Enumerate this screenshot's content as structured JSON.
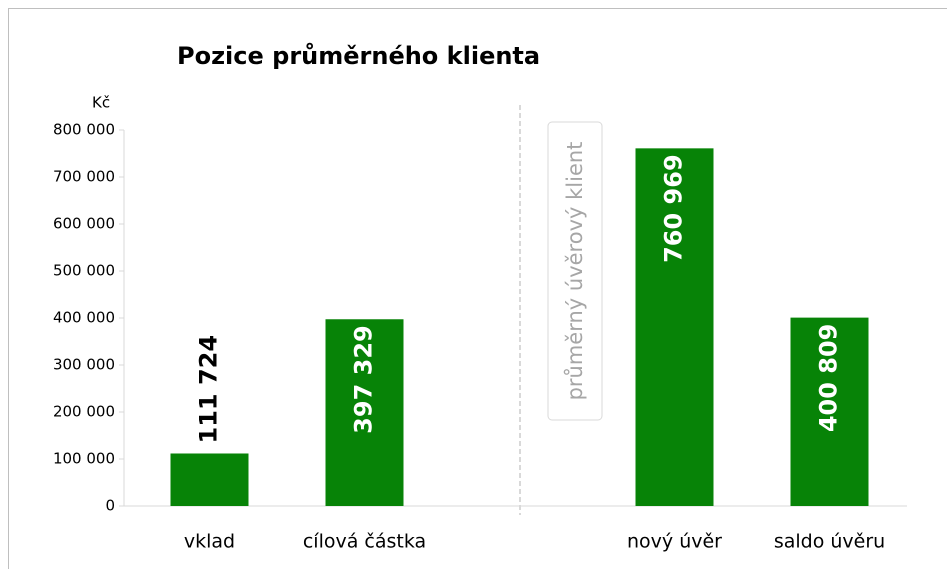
{
  "chart_data": {
    "type": "bar",
    "title": "Pozice průměrného klienta",
    "y_unit": "Kč",
    "categories": [
      "vklad",
      "cílová částka",
      null,
      "nový úvěr",
      "saldo úvěru"
    ],
    "values": [
      111724,
      397329,
      null,
      760969,
      400809
    ],
    "value_labels": [
      "111 724",
      "397 329",
      null,
      "760 969",
      "400 809"
    ],
    "color": "#078307",
    "annotation": "průměrný úvěrový klient",
    "ylim": [
      0,
      800000
    ],
    "yticks": [
      0,
      {
        "value": 100000,
        "label": "100 000"
      },
      {
        "value": 200000,
        "label": "200 000"
      },
      {
        "value": 300000,
        "label": "300 000"
      },
      {
        "value": 400000,
        "label": "400 000"
      },
      {
        "value": 500000,
        "label": "500 000"
      },
      {
        "value": 600000,
        "label": "600 000"
      },
      {
        "value": 700000,
        "label": "700 000"
      },
      {
        "value": 800000,
        "label": "800 000"
      }
    ],
    "grid": false
  }
}
